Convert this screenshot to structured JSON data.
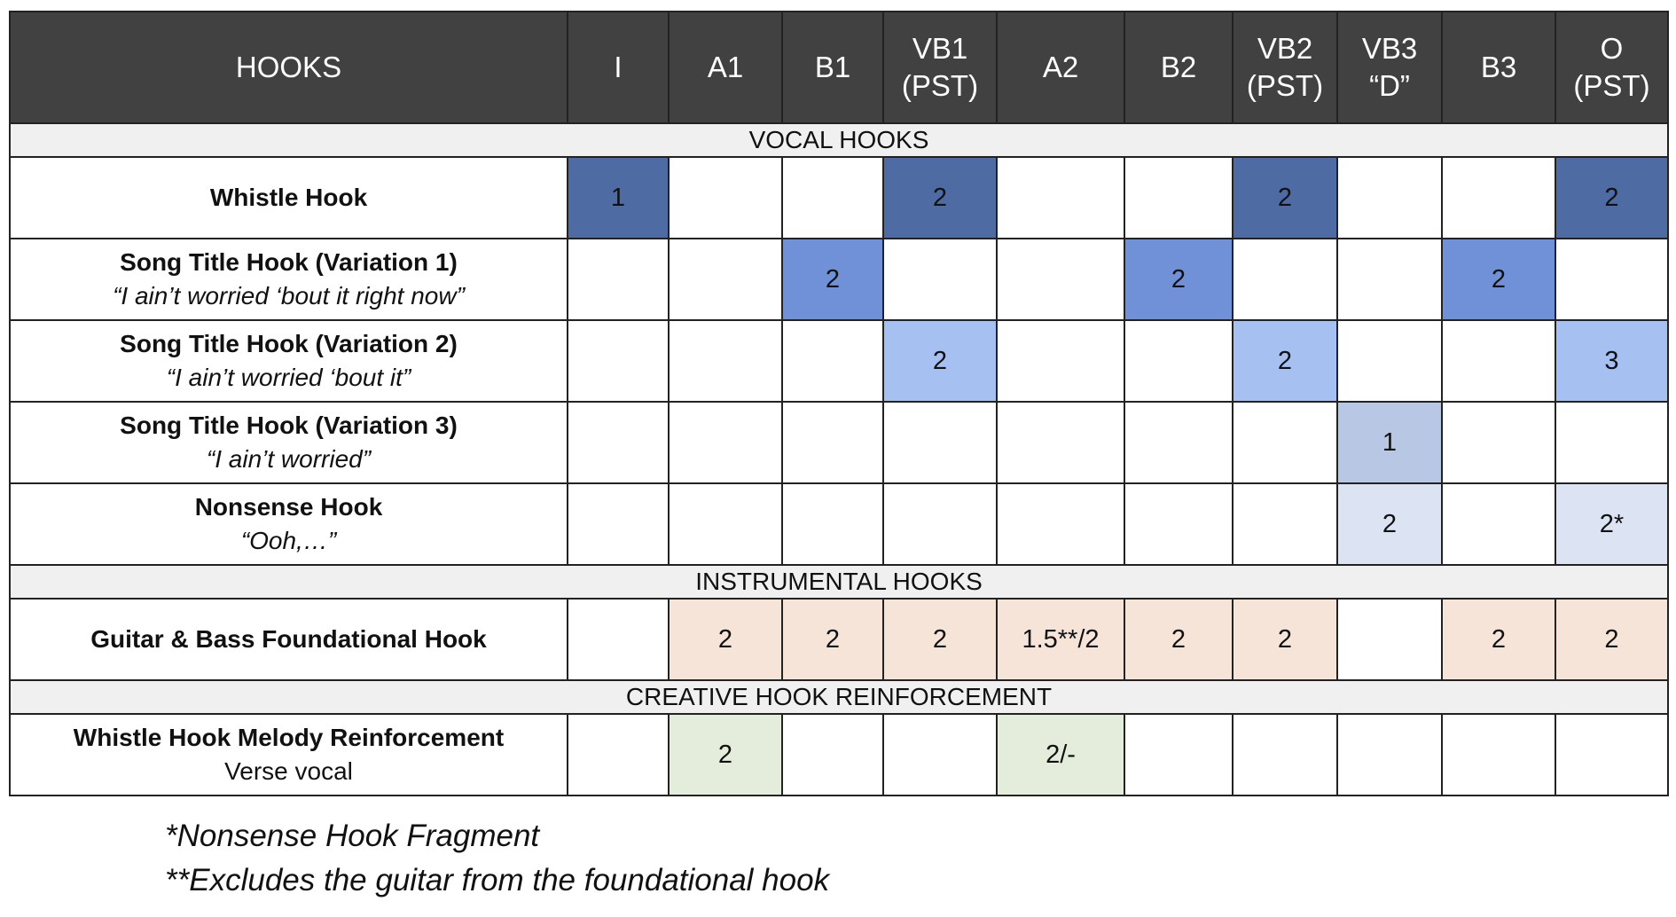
{
  "table": {
    "header_label": "HOOKS",
    "columns": [
      "I",
      "A1",
      "B1",
      "VB1\n(PST)",
      "A2",
      "B2",
      "VB2\n(PST)",
      "VB3\n“D”",
      "B3",
      "O\n(PST)"
    ],
    "sections": [
      {
        "title": "VOCAL HOOKS",
        "rows": [
          {
            "title": "Whistle Hook",
            "subtitle": "",
            "subtitle_italic": false,
            "cells": [
              "1",
              "",
              "",
              "2",
              "",
              "",
              "2",
              "",
              "",
              "2"
            ],
            "colors": [
              "#4e6ba3",
              "",
              "",
              "#4e6ba3",
              "",
              "",
              "#4e6ba3",
              "",
              "",
              "#4e6ba3"
            ]
          },
          {
            "title": "Song Title Hook (Variation 1)",
            "subtitle": "“I ain’t worried ‘bout it right now”",
            "subtitle_italic": true,
            "cells": [
              "",
              "",
              "2",
              "",
              "",
              "2",
              "",
              "",
              "2",
              ""
            ],
            "colors": [
              "",
              "",
              "#7091d8",
              "",
              "",
              "#7091d8",
              "",
              "",
              "#7091d8",
              ""
            ]
          },
          {
            "title": "Song Title Hook (Variation 2)",
            "subtitle": "“I ain’t worried ‘bout it”",
            "subtitle_italic": true,
            "cells": [
              "",
              "",
              "",
              "2",
              "",
              "",
              "2",
              "",
              "",
              "3"
            ],
            "colors": [
              "",
              "",
              "",
              "#a6c0f2",
              "",
              "",
              "#a6c0f2",
              "",
              "",
              "#a6c0f2"
            ]
          },
          {
            "title": "Song Title Hook (Variation 3)",
            "subtitle": "“I ain’t worried”",
            "subtitle_italic": true,
            "cells": [
              "",
              "",
              "",
              "",
              "",
              "",
              "",
              "1",
              "",
              ""
            ],
            "colors": [
              "",
              "",
              "",
              "",
              "",
              "",
              "",
              "#b8c7e4",
              "",
              ""
            ]
          },
          {
            "title": "Nonsense Hook",
            "subtitle": "“Ooh,…”",
            "subtitle_italic": true,
            "cells": [
              "",
              "",
              "",
              "",
              "",
              "",
              "",
              "2",
              "",
              "2*"
            ],
            "colors": [
              "",
              "",
              "",
              "",
              "",
              "",
              "",
              "#dce4f3",
              "",
              "#dce4f3"
            ]
          }
        ]
      },
      {
        "title": "INSTRUMENTAL HOOKS",
        "rows": [
          {
            "title": "Guitar & Bass Foundational Hook",
            "subtitle": "",
            "subtitle_italic": false,
            "cells": [
              "",
              "2",
              "2",
              "2",
              "1.5**/2",
              "2",
              "2",
              "",
              "2",
              "2"
            ],
            "colors": [
              "",
              "#f6e4d9",
              "#f6e4d9",
              "#f6e4d9",
              "#f6e4d9",
              "#f6e4d9",
              "#f6e4d9",
              "",
              "#f6e4d9",
              "#f6e4d9"
            ]
          }
        ]
      },
      {
        "title": "CREATIVE HOOK REINFORCEMENT",
        "rows": [
          {
            "title": "Whistle Hook Melody Reinforcement",
            "subtitle": "Verse vocal",
            "subtitle_italic": false,
            "cells": [
              "",
              "2",
              "",
              "",
              "2/-",
              "",
              "",
              "",
              "",
              ""
            ],
            "colors": [
              "",
              "#e4ecdb",
              "",
              "",
              "#e4ecdb",
              "",
              "",
              "",
              "",
              ""
            ]
          }
        ]
      }
    ]
  },
  "notes": [
    "*Nonsense Hook Fragment",
    "**Excludes the guitar from the foundational hook"
  ],
  "colors": {
    "header_bg": "#414141",
    "section_bg": "#f0f0f0",
    "whistle_hook": "#4e6ba3",
    "title_var1": "#7091d8",
    "title_var2": "#a6c0f2",
    "title_var3": "#b8c7e4",
    "nonsense": "#dce4f3",
    "foundational": "#f6e4d9",
    "reinforcement": "#e4ecdb"
  }
}
